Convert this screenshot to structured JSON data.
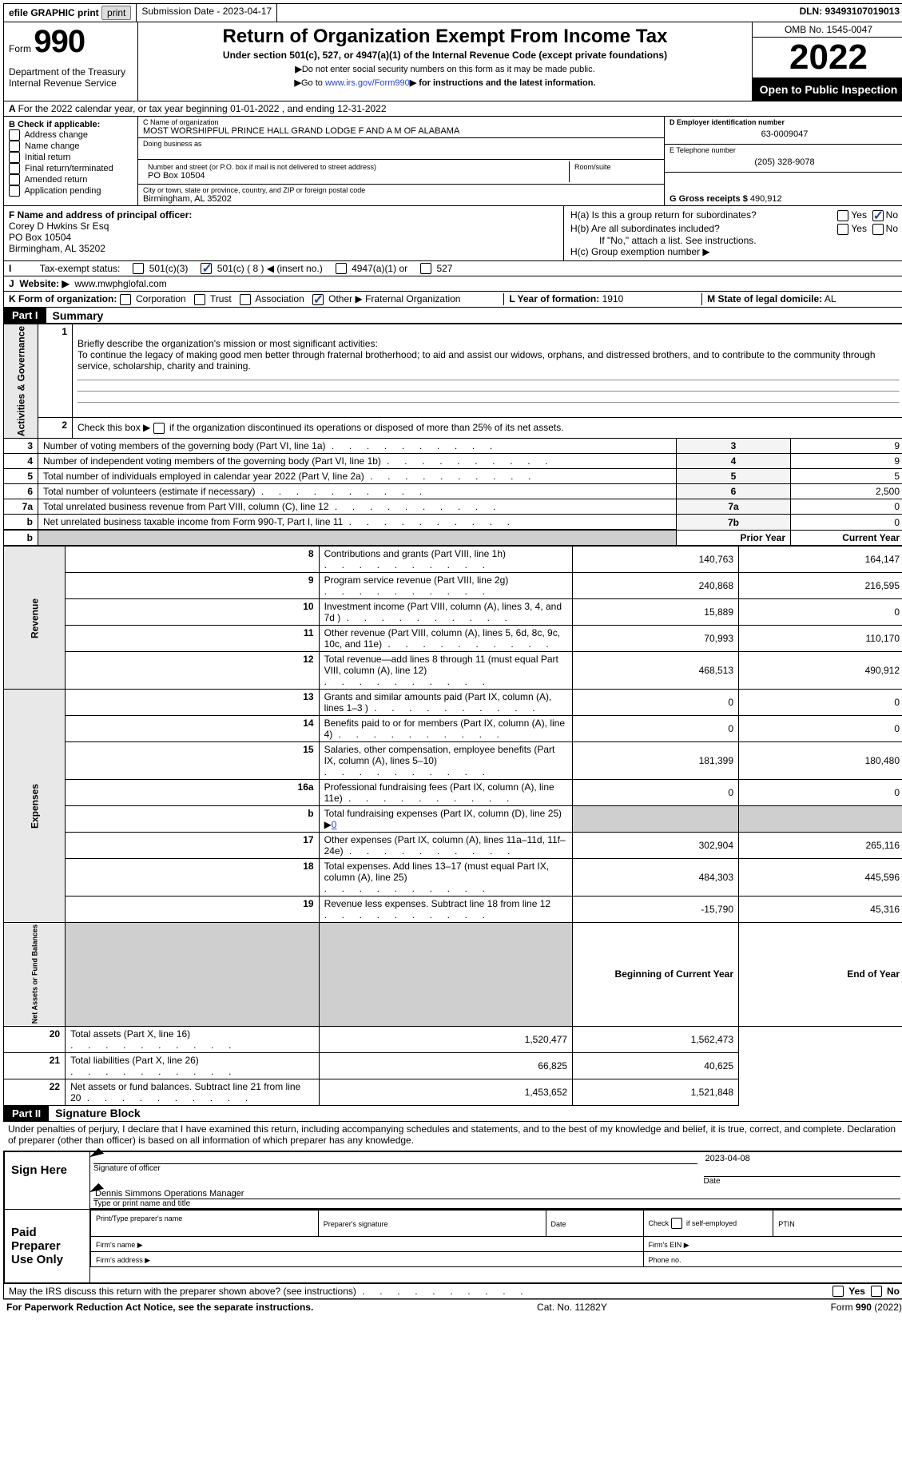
{
  "header": {
    "efile_label": "efile GRAPHIC print",
    "sub_date_label": "Submission Date - 2023-04-17",
    "dln_label": "DLN: 93493107019013",
    "form_word": "Form",
    "form_num": "990",
    "title": "Return of Organization Exempt From Income Tax",
    "subtitle": "Under section 501(c), 527, or 4947(a)(1) of the Internal Revenue Code (except private foundations)",
    "instr1": "Do not enter social security numbers on this form as it may be made public.",
    "instr2_pre": "Go to ",
    "instr2_link": "www.irs.gov/Form990",
    "instr2_post": " for instructions and the latest information.",
    "dept": "Department of the Treasury",
    "irs": "Internal Revenue Service",
    "omb": "OMB No. 1545-0047",
    "year": "2022",
    "open": "Open to Public Inspection"
  },
  "lineA": "For the 2022 calendar year, or tax year beginning 01-01-2022     , and ending 12-31-2022",
  "boxB": {
    "hdr": "B Check if applicable:",
    "items": [
      "Address change",
      "Name change",
      "Initial return",
      "Final return/terminated",
      "Amended return",
      "Application pending"
    ]
  },
  "boxC": {
    "lbl_name": "C Name of organization",
    "name": "MOST WORSHIPFUL PRINCE HALL GRAND LODGE F AND A M OF ALABAMA",
    "dba_lbl": "Doing business as",
    "street_lbl": "Number and street (or P.O. box if mail is not delivered to street address)",
    "room_lbl": "Room/suite",
    "street": "PO Box 10504",
    "city_lbl": "City or town, state or province, country, and ZIP or foreign postal code",
    "city": "Birmingham, AL  35202"
  },
  "boxD": {
    "lbl": "D Employer identification number",
    "val": "63-0009047"
  },
  "boxE": {
    "lbl": "E Telephone number",
    "val": "(205) 328-9078"
  },
  "boxG": {
    "lbl": "G Gross receipts $",
    "val": "490,912"
  },
  "boxF": {
    "lbl": "F  Name and address of principal officer:",
    "l1": "Corey D Hwkins Sr Esq",
    "l2": "PO Box 10504",
    "l3": "Birmingham, AL  35202"
  },
  "boxH": {
    "ha": "H(a)  Is this a group return for subordinates?",
    "hb": "H(b)  Are all subordinates included?",
    "hb_note": "If \"No,\" attach a list. See instructions.",
    "hc": "H(c)  Group exemption number ▶",
    "yes": "Yes",
    "no": "No"
  },
  "lineI": "Tax-exempt status:",
  "lineI_opts": {
    "a": "501(c)(3)",
    "b_pre": "501(c) ( ",
    "b_num": "8",
    "b_post": " ) ◀ (insert no.)",
    "c": "4947(a)(1) or",
    "d": "527"
  },
  "lineJ": {
    "lbl": "Website: ▶",
    "val": "www.mwphglofal.com"
  },
  "lineK": {
    "lbl": "K Form of organization:",
    "opts": [
      "Corporation",
      "Trust",
      "Association"
    ],
    "other": "Other ▶",
    "other_val": "Fraternal Organization"
  },
  "lineL": {
    "lbl": "L Year of formation:",
    "val": "1910"
  },
  "lineM": {
    "lbl": "M State of legal domicile:",
    "val": "AL"
  },
  "part1": {
    "hdr": "Part I",
    "title": "Summary",
    "q1": "Briefly describe the organization's mission or most significant activities:",
    "q1v": "To continue the legacy of making good men better through fraternal brotherhood; to aid and assist our widows, orphans, and distressed brothers, and to contribute to the community through service, scholarship, charity and training.",
    "q2": "Check this box ▶        if the organization discontinued its operations or disposed of more than 25% of its net assets.",
    "rows": [
      {
        "n": "3",
        "t": "Number of voting members of the governing body (Part VI, line 1a)",
        "box": "3",
        "v": "9"
      },
      {
        "n": "4",
        "t": "Number of independent voting members of the governing body (Part VI, line 1b)",
        "box": "4",
        "v": "9"
      },
      {
        "n": "5",
        "t": "Total number of individuals employed in calendar year 2022 (Part V, line 2a)",
        "box": "5",
        "v": "5"
      },
      {
        "n": "6",
        "t": "Total number of volunteers (estimate if necessary)",
        "box": "6",
        "v": "2,500"
      },
      {
        "n": "7a",
        "t": "Total unrelated business revenue from Part VIII, column (C), line 12",
        "box": "7a",
        "v": "0"
      },
      {
        "n": "b",
        "t": "Net unrelated business taxable income from Form 990-T, Part I, line 11",
        "box": "7b",
        "v": "0"
      }
    ],
    "py": "Prior Year",
    "cy": "Current Year",
    "revenue": [
      {
        "n": "8",
        "t": "Contributions and grants (Part VIII, line 1h)",
        "p": "140,763",
        "c": "164,147"
      },
      {
        "n": "9",
        "t": "Program service revenue (Part VIII, line 2g)",
        "p": "240,868",
        "c": "216,595"
      },
      {
        "n": "10",
        "t": "Investment income (Part VIII, column (A), lines 3, 4, and 7d )",
        "p": "15,889",
        "c": "0"
      },
      {
        "n": "11",
        "t": "Other revenue (Part VIII, column (A), lines 5, 6d, 8c, 9c, 10c, and 11e)",
        "p": "70,993",
        "c": "110,170"
      },
      {
        "n": "12",
        "t": "Total revenue—add lines 8 through 11 (must equal Part VIII, column (A), line 12)",
        "p": "468,513",
        "c": "490,912"
      }
    ],
    "expenses": [
      {
        "n": "13",
        "t": "Grants and similar amounts paid (Part IX, column (A), lines 1–3 )",
        "p": "0",
        "c": "0"
      },
      {
        "n": "14",
        "t": "Benefits paid to or for members (Part IX, column (A), line 4)",
        "p": "0",
        "c": "0"
      },
      {
        "n": "15",
        "t": "Salaries, other compensation, employee benefits (Part IX, column (A), lines 5–10)",
        "p": "181,399",
        "c": "180,480"
      },
      {
        "n": "16a",
        "t": "Professional fundraising fees (Part IX, column (A), line 11e)",
        "p": "0",
        "c": "0"
      },
      {
        "n": "b",
        "t": "Total fundraising expenses (Part IX, column (D), line 25) ▶",
        "p": "grey",
        "c": "grey",
        "bval": "0"
      },
      {
        "n": "17",
        "t": "Other expenses (Part IX, column (A), lines 11a–11d, 11f–24e)",
        "p": "302,904",
        "c": "265,116"
      },
      {
        "n": "18",
        "t": "Total expenses. Add lines 13–17 (must equal Part IX, column (A), line 25)",
        "p": "484,303",
        "c": "445,596"
      },
      {
        "n": "19",
        "t": "Revenue less expenses. Subtract line 18 from line 12",
        "p": "-15,790",
        "c": "45,316"
      }
    ],
    "bcy": "Beginning of Current Year",
    "eoy": "End of Year",
    "netassets": [
      {
        "n": "20",
        "t": "Total assets (Part X, line 16)",
        "p": "1,520,477",
        "c": "1,562,473"
      },
      {
        "n": "21",
        "t": "Total liabilities (Part X, line 26)",
        "p": "66,825",
        "c": "40,625"
      },
      {
        "n": "22",
        "t": "Net assets or fund balances. Subtract line 21 from line 20",
        "p": "1,453,652",
        "c": "1,521,848"
      }
    ],
    "sides": {
      "ag": "Activities & Governance",
      "rev": "Revenue",
      "exp": "Expenses",
      "na": "Net Assets or Fund Balances"
    }
  },
  "part2": {
    "hdr": "Part II",
    "title": "Signature Block",
    "decl": "Under penalties of perjury, I declare that I have examined this return, including accompanying schedules and statements, and to the best of my knowledge and belief, it is true, correct, and complete. Declaration of preparer (other than officer) is based on all information of which preparer has any knowledge.",
    "sign_here": "Sign Here",
    "sig_officer": "Signature of officer",
    "sig_date": "2023-04-08",
    "date_lbl": "Date",
    "name": "Dennis Simmons  Operations Manager",
    "name_lbl": "Type or print name and title",
    "paid": "Paid Preparer Use Only",
    "p_name_lbl": "Print/Type preparer's name",
    "p_sig_lbl": "Preparer's signature",
    "p_date_lbl": "Date",
    "p_check": "Check        if self-employed",
    "ptin": "PTIN",
    "firm_name": "Firm's name   ▶",
    "firm_ein": "Firm's EIN ▶",
    "firm_addr": "Firm's address ▶",
    "phone": "Phone no.",
    "discuss": "May the IRS discuss this return with the preparer shown above? (see instructions)"
  },
  "footer": {
    "pra": "For Paperwork Reduction Act Notice, see the separate instructions.",
    "cat": "Cat. No. 11282Y",
    "form": "Form 990 (2022)"
  }
}
